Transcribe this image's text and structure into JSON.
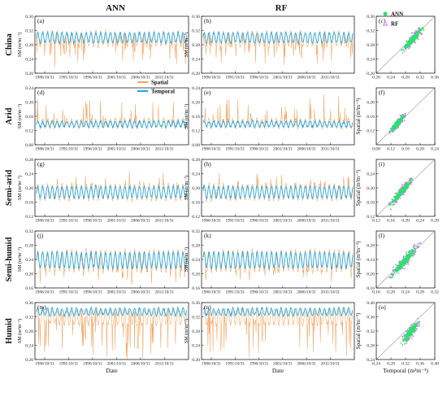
{
  "chart_data": {
    "type": "line",
    "column_titles": [
      "ANN",
      "RF"
    ],
    "x_ticks": [
      "1986/10/31",
      "1991/10/31",
      "1996/10/31",
      "2001/10/31",
      "2006/10/31",
      "2011/10/31"
    ],
    "xlabel": "Date",
    "ylabel": "SM (m³m⁻³)",
    "scatter_xlabel": "Temporal (m³m⁻³)",
    "scatter_ylabel": "Spatial (m³m⁻³)",
    "legend_series": [
      "Spatial",
      "Temporal"
    ],
    "legend_scatter": [
      "ANN",
      "RF"
    ],
    "colors": {
      "spatial": "#F4A460",
      "temporal": "#1EA8E6",
      "ann": "#2EE06E",
      "rf": "#C878F0",
      "identity": "#999999"
    },
    "rows": [
      {
        "region": "China",
        "labels": [
          "(a)",
          "(b)",
          "(c)"
        ],
        "yticks": [
          "0.20",
          "0.24",
          "0.28",
          "0.32",
          "0.36"
        ],
        "ylim": [
          0.2,
          0.36
        ],
        "sx_ticks": [
          "0.20",
          "0.24",
          "0.28",
          "0.32",
          "0.36"
        ],
        "sy_ticks": [
          "0.20",
          "0.24",
          "0.28",
          "0.32",
          "0.36"
        ],
        "slim": [
          0.2,
          0.36
        ],
        "temporal": {
          "center": 0.3,
          "amp": 0.014
        },
        "spatial": {
          "center": 0.296,
          "amp": 0.02,
          "dip": 0.06
        }
      },
      {
        "region": "Arid",
        "labels": [
          "(d)",
          "(e)",
          "(f)"
        ],
        "yticks": [
          "0.08",
          "0.12",
          "0.16",
          "0.20",
          "0.24"
        ],
        "ylim": [
          0.08,
          0.24
        ],
        "sx_ticks": [
          "0.08",
          "0.12",
          "0.16",
          "0.20",
          "0.24"
        ],
        "sy_ticks": [
          "0.12",
          "0.16",
          "0.20"
        ],
        "slim": [
          0.08,
          0.24
        ],
        "temporal": {
          "center": 0.138,
          "amp": 0.008
        },
        "spatial": {
          "center": 0.14,
          "amp": 0.012,
          "spike": 0.07
        }
      },
      {
        "region": "Semi-arid",
        "labels": [
          "(g)",
          "(h)",
          "(i)"
        ],
        "yticks": [
          "0.12",
          "0.16",
          "0.20",
          "0.24",
          "0.28"
        ],
        "ylim": [
          0.12,
          0.28
        ],
        "sx_ticks": [
          "0.12",
          "0.16",
          "0.20",
          "0.24",
          "0.28"
        ],
        "sy_ticks": [
          "0.12",
          "0.16",
          "0.20",
          "0.24"
        ],
        "slim": [
          0.12,
          0.28
        ],
        "temporal": {
          "center": 0.188,
          "amp": 0.016
        },
        "spatial": {
          "center": 0.188,
          "amp": 0.022,
          "spike": 0.04
        }
      },
      {
        "region": "Semi-humid",
        "labels": [
          "(j)",
          "(k)",
          "(l)"
        ],
        "yticks": [
          "0.16",
          "0.20",
          "0.24",
          "0.28",
          "0.32"
        ],
        "ylim": [
          0.16,
          0.32
        ],
        "sx_ticks": [
          "0.16",
          "0.20",
          "0.24",
          "0.28",
          "0.32"
        ],
        "sy_ticks": [
          "0.16",
          "0.20",
          "0.24",
          "0.28"
        ],
        "slim": [
          0.16,
          0.32
        ],
        "temporal": {
          "center": 0.238,
          "amp": 0.022
        },
        "spatial": {
          "center": 0.236,
          "amp": 0.03,
          "dip": 0.04
        }
      },
      {
        "region": "Humid",
        "labels": [
          "(m)",
          "(n)",
          "(o)"
        ],
        "yticks": [
          "0.20",
          "0.24",
          "0.28",
          "0.32",
          "0.36"
        ],
        "ylim": [
          0.2,
          0.36
        ],
        "sx_ticks": [
          "0.24",
          "0.28",
          "0.32",
          "0.36",
          "0.40"
        ],
        "sy_ticks": [
          "0.24",
          "0.28",
          "0.32",
          "0.36",
          "0.40"
        ],
        "slim": [
          0.24,
          0.4
        ],
        "temporal": {
          "center": 0.334,
          "amp": 0.01
        },
        "spatial": {
          "center": 0.318,
          "amp": 0.02,
          "dip": 0.11
        }
      }
    ]
  }
}
